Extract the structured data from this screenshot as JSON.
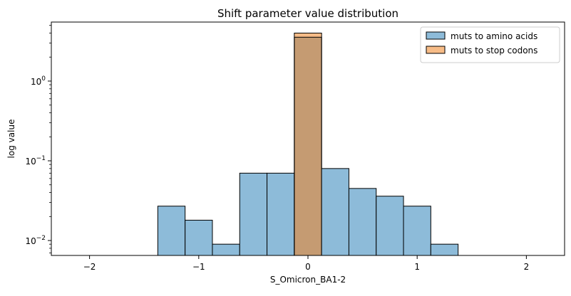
{
  "chart_data": {
    "type": "bar",
    "title": "Shift parameter value distribution",
    "xlabel": "S_Omicron_BA1-2",
    "ylabel": "log value",
    "yscale": "log",
    "xlim": [
      -2.35,
      2.35
    ],
    "ylim": [
      0.0065,
      5.5
    ],
    "xticks": [
      -2,
      -1,
      0,
      1,
      2
    ],
    "xtick_labels": [
      "−2",
      "−1",
      "0",
      "1",
      "2"
    ],
    "yticks": [
      {
        "value": 0.01,
        "base": "10",
        "exp": "−2"
      },
      {
        "value": 0.1,
        "base": "10",
        "exp": "−1"
      },
      {
        "value": 1,
        "base": "10",
        "exp": "0"
      }
    ],
    "legend_position": "upper-right",
    "bin_edges": [
      -1.375,
      -1.125,
      -0.875,
      -0.625,
      -0.375,
      -0.125,
      0.125,
      0.375,
      0.625,
      0.875,
      1.125,
      1.375
    ],
    "series": [
      {
        "name": "muts to amino acids",
        "color": "#1f77b4",
        "fill": "#8dbbd9",
        "values": [
          0.027,
          0.018,
          0.009,
          0.07,
          0.07,
          3.55,
          0.08,
          0.045,
          0.036,
          0.027,
          0.009
        ]
      },
      {
        "name": "muts to stop codons",
        "color": "#ff7f0e",
        "fill": "#f7bc87",
        "values": [
          null,
          null,
          null,
          null,
          null,
          4.0,
          null,
          null,
          null,
          null,
          null
        ]
      }
    ],
    "overlap_fill": "#c59b72"
  }
}
